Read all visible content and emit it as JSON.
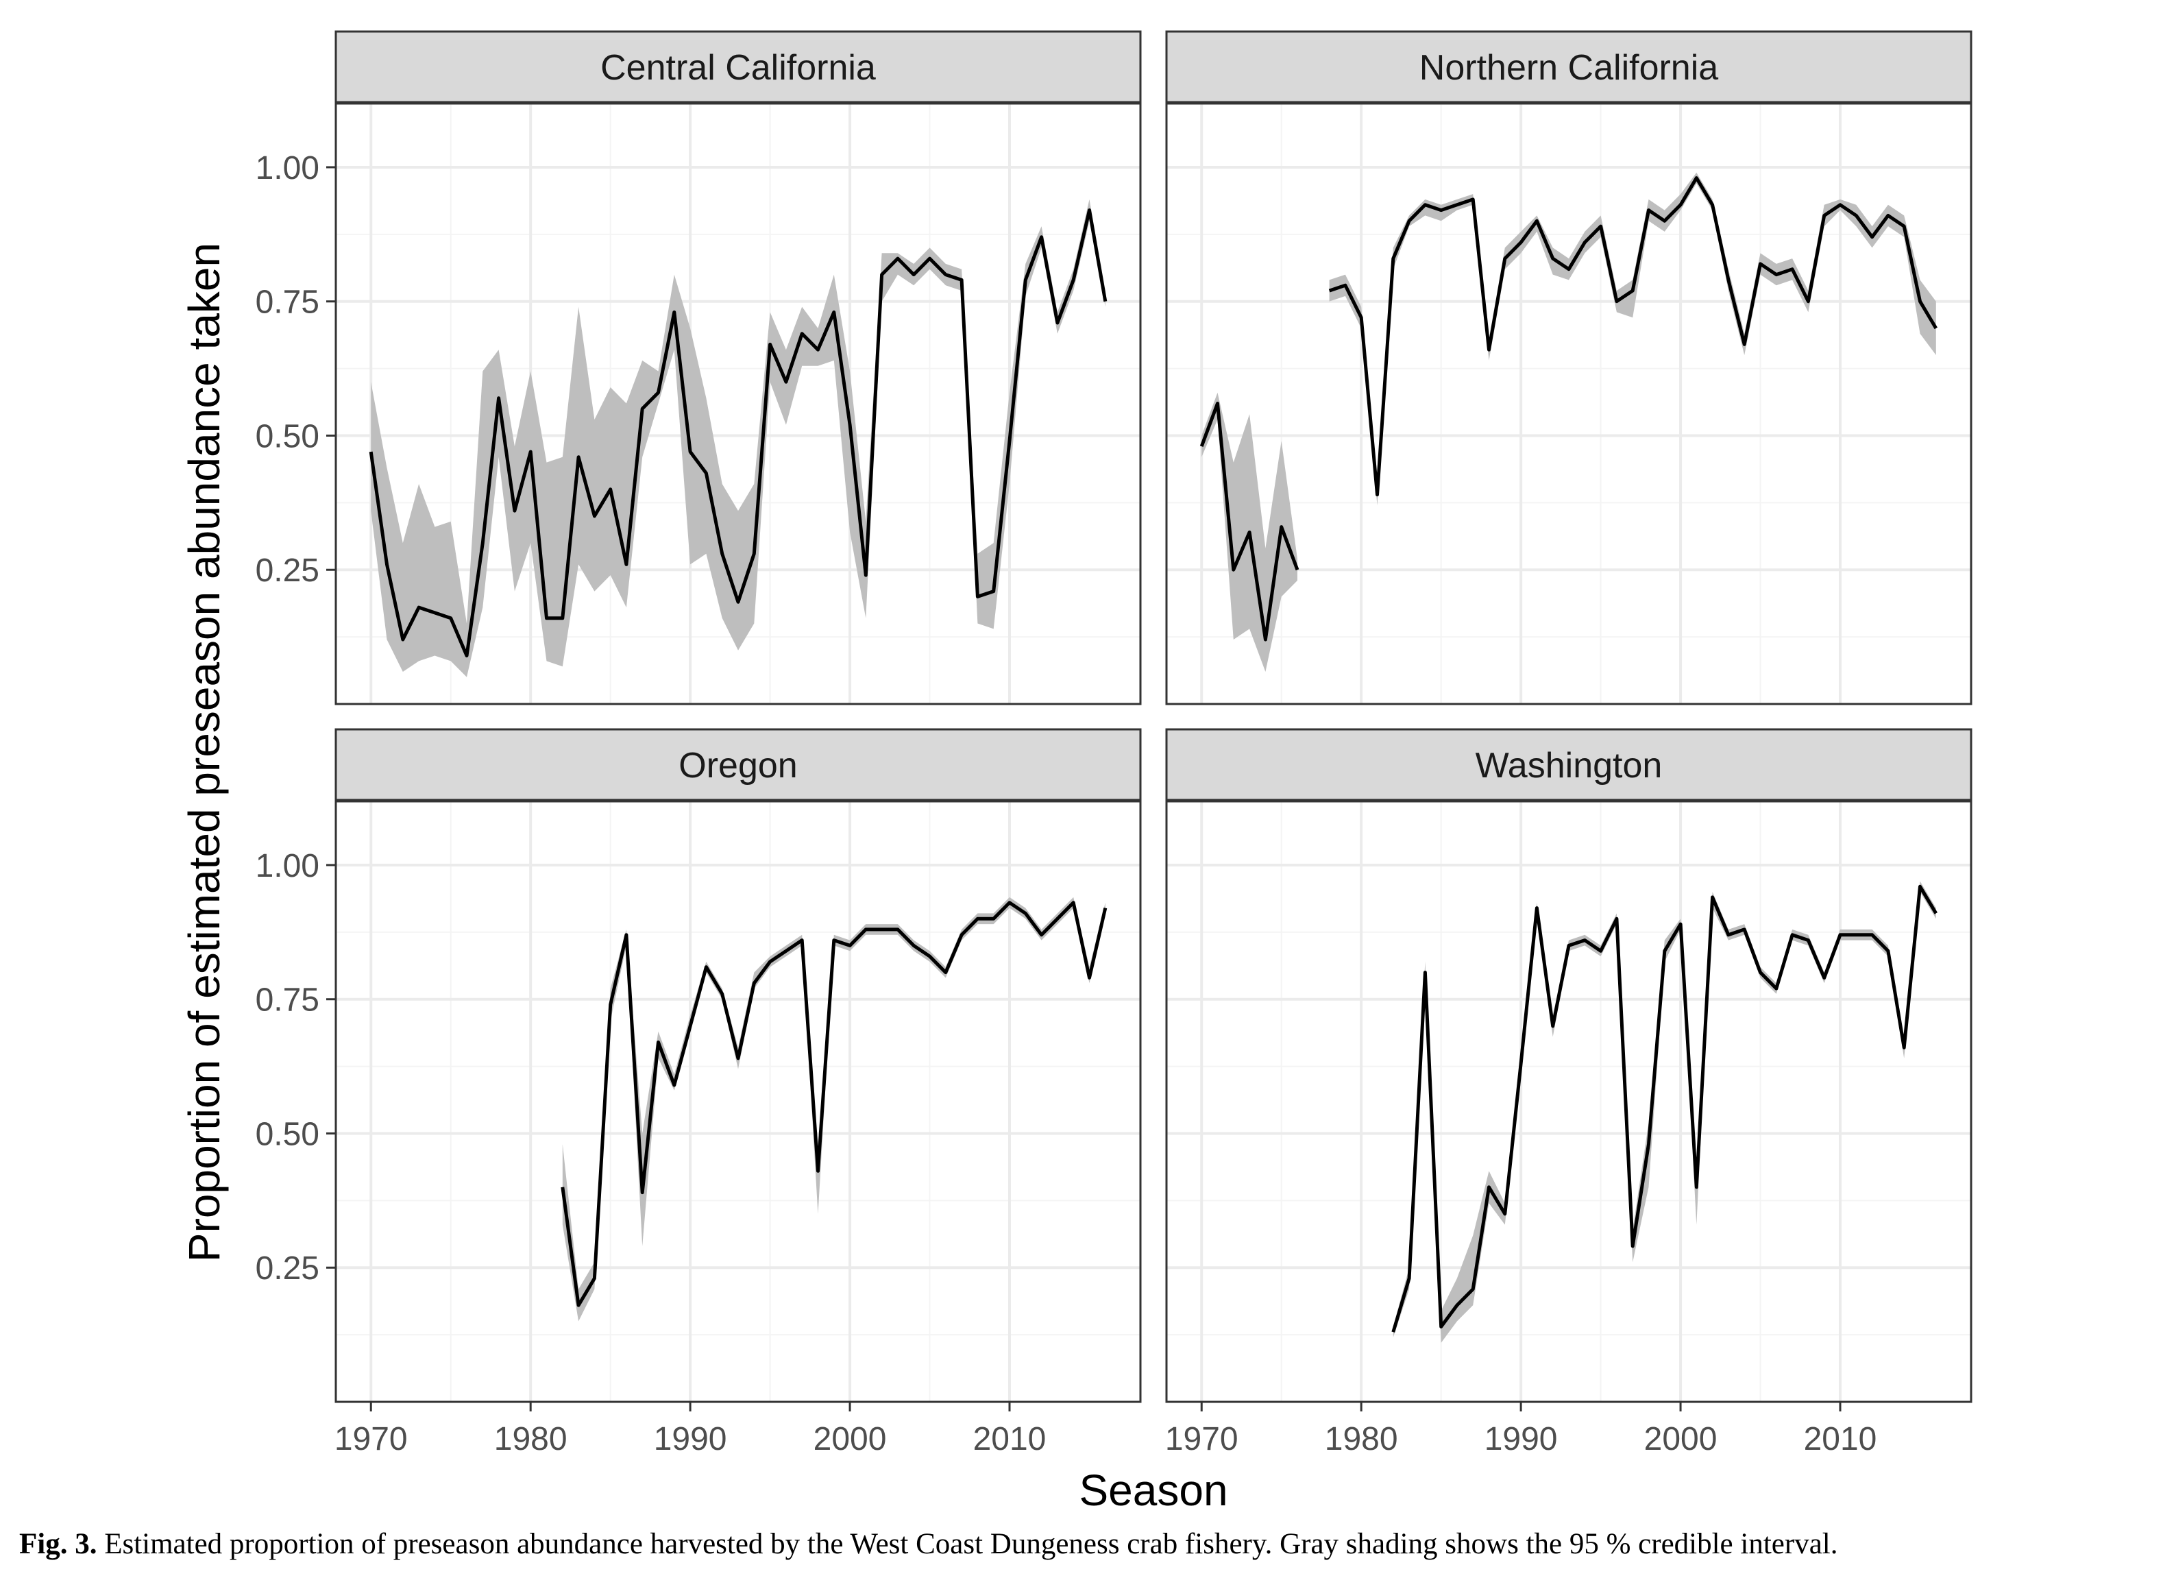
{
  "caption": {
    "label": "Fig. 3.",
    "text": "Estimated proportion of preseason abundance harvested by the West Coast Dungeness crab fishery. Gray shading shows the 95 % credible interval."
  },
  "colors": {
    "line": "#000000",
    "ribbon": "#bebebe",
    "strip_fill": "#d9d9d9",
    "grid_major": "#ebebeb",
    "grid_minor": "#f4f4f4",
    "panel_border": "#333333"
  },
  "chart_data": {
    "type": "line",
    "facets": [
      "Central California",
      "Northern California",
      "Oregon",
      "Washington"
    ],
    "xlabel": "Season",
    "ylabel": "Proportion of estimated preseason abundance taken",
    "xlim": [
      1967.8,
      2018.2
    ],
    "ylim": [
      0.0,
      1.12
    ],
    "xticks": [
      1970,
      1980,
      1990,
      2000,
      2010
    ],
    "xtick_labels": [
      "1970",
      "1980",
      "1990",
      "2000",
      "2010"
    ],
    "yticks": [
      0.25,
      0.5,
      0.75,
      1.0
    ],
    "ytick_labels": [
      "0.25",
      "0.50",
      "0.75",
      "1.00"
    ],
    "series": [
      {
        "name": "Central California",
        "x": [
          1970,
          1971,
          1972,
          1973,
          1974,
          1975,
          1976,
          1977,
          1978,
          1979,
          1980,
          1981,
          1982,
          1983,
          1984,
          1985,
          1986,
          1987,
          1988,
          1989,
          1990,
          1991,
          1992,
          1993,
          1994,
          1995,
          1996,
          1997,
          1998,
          1999,
          2000,
          2001,
          2002,
          2003,
          2004,
          2005,
          2006,
          2007,
          2008,
          2009,
          2010,
          2011,
          2012,
          2013,
          2014,
          2015,
          2016
        ],
        "y": [
          0.47,
          0.26,
          0.12,
          0.18,
          0.17,
          0.16,
          0.09,
          0.3,
          0.57,
          0.36,
          0.47,
          0.16,
          0.16,
          0.46,
          0.35,
          0.4,
          0.26,
          0.55,
          0.58,
          0.73,
          0.47,
          0.43,
          0.28,
          0.19,
          0.28,
          0.67,
          0.6,
          0.69,
          0.66,
          0.73,
          0.52,
          0.24,
          0.8,
          0.83,
          0.8,
          0.83,
          0.8,
          0.79,
          0.2,
          0.21,
          0.49,
          0.79,
          0.87,
          0.71,
          0.79,
          0.92,
          0.75
        ],
        "lower": [
          0.36,
          0.12,
          0.06,
          0.08,
          0.09,
          0.08,
          0.05,
          0.18,
          0.46,
          0.21,
          0.3,
          0.08,
          0.07,
          0.26,
          0.21,
          0.24,
          0.18,
          0.46,
          0.56,
          0.66,
          0.26,
          0.28,
          0.16,
          0.1,
          0.15,
          0.6,
          0.52,
          0.63,
          0.63,
          0.64,
          0.32,
          0.16,
          0.75,
          0.8,
          0.78,
          0.81,
          0.78,
          0.77,
          0.15,
          0.14,
          0.41,
          0.76,
          0.85,
          0.69,
          0.77,
          0.9,
          0.74
        ],
        "upper": [
          0.6,
          0.44,
          0.3,
          0.41,
          0.33,
          0.34,
          0.15,
          0.62,
          0.66,
          0.48,
          0.62,
          0.45,
          0.46,
          0.74,
          0.53,
          0.59,
          0.56,
          0.64,
          0.62,
          0.8,
          0.7,
          0.57,
          0.41,
          0.36,
          0.41,
          0.73,
          0.66,
          0.74,
          0.7,
          0.8,
          0.62,
          0.34,
          0.84,
          0.84,
          0.82,
          0.85,
          0.82,
          0.81,
          0.28,
          0.3,
          0.58,
          0.82,
          0.89,
          0.73,
          0.81,
          0.94,
          0.77
        ]
      },
      {
        "name": "Northern California",
        "x": [
          1970,
          1971,
          1972,
          1973,
          1974,
          1975,
          1976,
          null,
          1978,
          1979,
          1980,
          1981,
          1982,
          1983,
          1984,
          1985,
          1986,
          1987,
          1988,
          1989,
          1990,
          1991,
          1992,
          1993,
          1994,
          1995,
          1996,
          1997,
          1998,
          1999,
          2000,
          2001,
          2002,
          2003,
          2004,
          2005,
          2006,
          2007,
          2008,
          2009,
          2010,
          2011,
          2012,
          2013,
          2014,
          2015,
          2016
        ],
        "y": [
          0.48,
          0.56,
          0.25,
          0.32,
          0.12,
          0.33,
          0.25,
          null,
          0.77,
          0.78,
          0.72,
          0.39,
          0.83,
          0.9,
          0.93,
          0.92,
          0.93,
          0.94,
          0.66,
          0.83,
          0.86,
          0.9,
          0.83,
          0.81,
          0.86,
          0.89,
          0.75,
          0.77,
          0.92,
          0.9,
          0.93,
          0.98,
          0.93,
          0.79,
          0.67,
          0.82,
          0.8,
          0.81,
          0.75,
          0.91,
          0.93,
          0.91,
          0.87,
          0.91,
          0.89,
          0.75,
          0.7
        ],
        "lower": [
          0.46,
          0.53,
          0.12,
          0.14,
          0.06,
          0.2,
          0.23,
          null,
          0.75,
          0.76,
          0.7,
          0.37,
          0.81,
          0.89,
          0.91,
          0.9,
          0.92,
          0.93,
          0.64,
          0.81,
          0.84,
          0.88,
          0.8,
          0.79,
          0.84,
          0.87,
          0.73,
          0.72,
          0.9,
          0.88,
          0.92,
          0.97,
          0.92,
          0.77,
          0.65,
          0.8,
          0.78,
          0.79,
          0.73,
          0.89,
          0.92,
          0.89,
          0.85,
          0.89,
          0.87,
          0.69,
          0.65
        ],
        "upper": [
          0.5,
          0.58,
          0.45,
          0.54,
          0.29,
          0.49,
          0.27,
          null,
          0.79,
          0.8,
          0.74,
          0.41,
          0.85,
          0.91,
          0.94,
          0.93,
          0.94,
          0.95,
          0.68,
          0.85,
          0.88,
          0.91,
          0.85,
          0.83,
          0.88,
          0.91,
          0.77,
          0.79,
          0.94,
          0.92,
          0.95,
          0.99,
          0.94,
          0.81,
          0.69,
          0.84,
          0.82,
          0.83,
          0.77,
          0.93,
          0.94,
          0.93,
          0.89,
          0.93,
          0.91,
          0.79,
          0.75
        ]
      },
      {
        "name": "Oregon",
        "x": [
          1982,
          1983,
          1984,
          1985,
          1986,
          1987,
          1988,
          1989,
          1990,
          1991,
          1992,
          1993,
          1994,
          1995,
          1996,
          1997,
          1998,
          1999,
          2000,
          2001,
          2002,
          2003,
          2004,
          2005,
          2006,
          2007,
          2008,
          2009,
          2010,
          2011,
          2012,
          2013,
          2014,
          2015,
          2016
        ],
        "y": [
          0.4,
          0.18,
          0.23,
          0.74,
          0.87,
          0.39,
          0.67,
          0.59,
          0.7,
          0.81,
          0.76,
          0.64,
          0.78,
          0.82,
          0.84,
          0.86,
          0.43,
          0.86,
          0.85,
          0.88,
          0.88,
          0.88,
          0.85,
          0.83,
          0.8,
          0.87,
          0.9,
          0.9,
          0.93,
          0.91,
          0.87,
          0.9,
          0.93,
          0.79,
          0.92
        ],
        "lower": [
          0.33,
          0.15,
          0.21,
          0.71,
          0.85,
          0.29,
          0.64,
          0.58,
          0.69,
          0.8,
          0.75,
          0.62,
          0.77,
          0.81,
          0.83,
          0.85,
          0.35,
          0.85,
          0.84,
          0.87,
          0.87,
          0.87,
          0.84,
          0.82,
          0.79,
          0.86,
          0.89,
          0.89,
          0.92,
          0.9,
          0.86,
          0.89,
          0.92,
          0.78,
          0.91
        ],
        "upper": [
          0.48,
          0.21,
          0.26,
          0.77,
          0.88,
          0.5,
          0.69,
          0.61,
          0.72,
          0.82,
          0.77,
          0.66,
          0.8,
          0.83,
          0.85,
          0.87,
          0.47,
          0.87,
          0.86,
          0.89,
          0.89,
          0.89,
          0.86,
          0.84,
          0.81,
          0.88,
          0.91,
          0.91,
          0.94,
          0.92,
          0.88,
          0.91,
          0.94,
          0.81,
          0.93
        ]
      },
      {
        "name": "Washington",
        "x": [
          1982,
          1983,
          1984,
          1985,
          1986,
          1987,
          1988,
          1989,
          1990,
          1991,
          1992,
          1993,
          1994,
          1995,
          1996,
          1997,
          1998,
          1999,
          2000,
          2001,
          2002,
          2003,
          2004,
          2005,
          2006,
          2007,
          2008,
          2009,
          2010,
          2011,
          2012,
          2013,
          2014,
          2015,
          2016
        ],
        "y": [
          0.13,
          0.23,
          0.8,
          0.14,
          0.18,
          0.21,
          0.4,
          0.35,
          0.63,
          0.92,
          0.7,
          0.85,
          0.86,
          0.84,
          0.9,
          0.29,
          0.48,
          0.84,
          0.89,
          0.4,
          0.94,
          0.87,
          0.88,
          0.8,
          0.77,
          0.87,
          0.86,
          0.79,
          0.87,
          0.87,
          0.87,
          0.84,
          0.66,
          0.96,
          0.91
        ],
        "lower": [
          0.12,
          0.21,
          0.78,
          0.11,
          0.15,
          0.18,
          0.37,
          0.33,
          0.6,
          0.9,
          0.68,
          0.84,
          0.85,
          0.83,
          0.89,
          0.26,
          0.4,
          0.82,
          0.88,
          0.33,
          0.92,
          0.86,
          0.87,
          0.79,
          0.76,
          0.86,
          0.85,
          0.78,
          0.86,
          0.86,
          0.86,
          0.83,
          0.64,
          0.95,
          0.9
        ],
        "upper": [
          0.14,
          0.25,
          0.82,
          0.17,
          0.23,
          0.31,
          0.43,
          0.37,
          0.66,
          0.93,
          0.72,
          0.86,
          0.87,
          0.85,
          0.91,
          0.32,
          0.52,
          0.86,
          0.9,
          0.44,
          0.95,
          0.88,
          0.89,
          0.81,
          0.78,
          0.88,
          0.87,
          0.8,
          0.88,
          0.88,
          0.88,
          0.85,
          0.68,
          0.97,
          0.92
        ]
      }
    ]
  }
}
